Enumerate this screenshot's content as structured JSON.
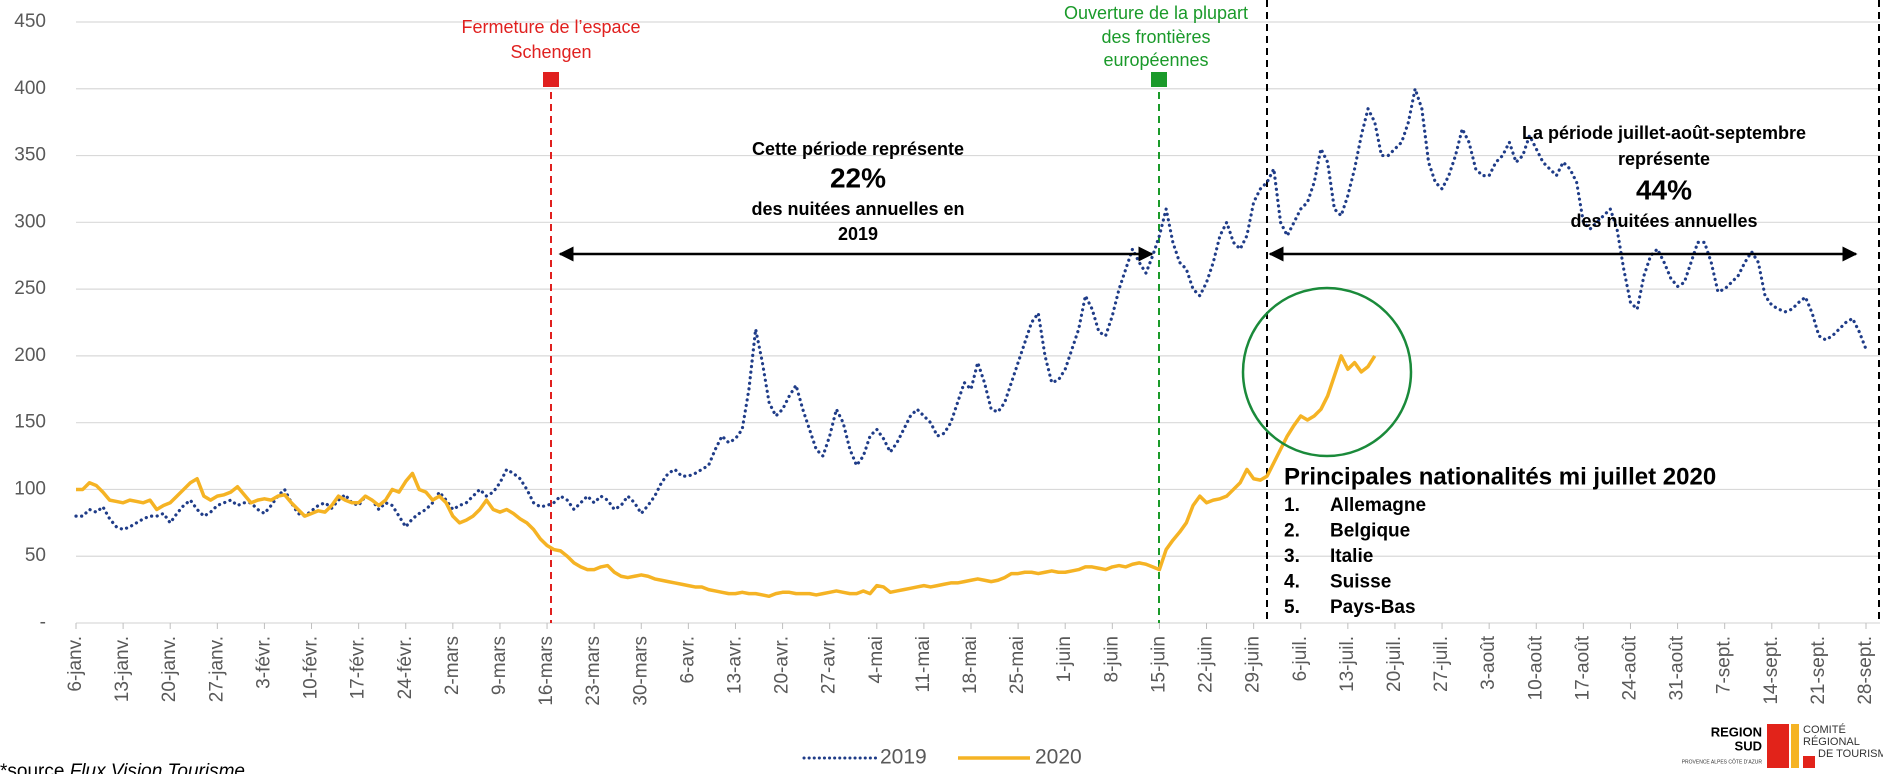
{
  "chart_data": {
    "type": "line",
    "categories": [
      "6-janv.",
      null,
      null,
      null,
      null,
      null,
      null,
      "13-janv.",
      null,
      null,
      null,
      null,
      null,
      null,
      "20-janv.",
      null,
      null,
      null,
      null,
      null,
      null,
      "27-janv.",
      null,
      null,
      null,
      null,
      null,
      null,
      "3-févr.",
      null,
      null,
      null,
      null,
      null,
      null,
      "10-févr.",
      null,
      null,
      null,
      null,
      null,
      null,
      "17-févr.",
      null,
      null,
      null,
      null,
      null,
      null,
      "24-févr.",
      null,
      null,
      null,
      null,
      null,
      null,
      "2-mars",
      null,
      null,
      null,
      null,
      null,
      null,
      "9-mars",
      null,
      null,
      null,
      null,
      null,
      null,
      "16-mars",
      null,
      null,
      null,
      null,
      null,
      null,
      "23-mars",
      null,
      null,
      null,
      null,
      null,
      null,
      "30-mars",
      null,
      null,
      null,
      null,
      null,
      null,
      "6-avr.",
      null,
      null,
      null,
      null,
      null,
      null,
      "13-avr.",
      null,
      null,
      null,
      null,
      null,
      null,
      "20-avr.",
      null,
      null,
      null,
      null,
      null,
      null,
      "27-avr.",
      null,
      null,
      null,
      null,
      null,
      null,
      "4-mai",
      null,
      null,
      null,
      null,
      null,
      null,
      "11-mai",
      null,
      null,
      null,
      null,
      null,
      null,
      "18-mai",
      null,
      null,
      null,
      null,
      null,
      null,
      "25-mai",
      null,
      null,
      null,
      null,
      null,
      null,
      "1-juin",
      null,
      null,
      null,
      null,
      null,
      null,
      "8-juin",
      null,
      null,
      null,
      null,
      null,
      null,
      "15-juin",
      null,
      null,
      null,
      null,
      null,
      null,
      "22-juin",
      null,
      null,
      null,
      null,
      null,
      null,
      "29-juin",
      null,
      null,
      null,
      null,
      null,
      null,
      "6-juil.",
      null,
      null,
      null,
      null,
      null,
      null,
      "13-juil.",
      null,
      null,
      null,
      null,
      null,
      null,
      "20-juil.",
      null,
      null,
      null,
      null,
      null,
      null,
      "27-juil.",
      null,
      null,
      null,
      null,
      null,
      null,
      "3-août",
      null,
      null,
      null,
      null,
      null,
      null,
      "10-août",
      null,
      null,
      null,
      null,
      null,
      null,
      "17-août",
      null,
      null,
      null,
      null,
      null,
      null,
      "24-août",
      null,
      null,
      null,
      null,
      null,
      null,
      "31-août",
      null,
      null,
      null,
      null,
      null,
      null,
      "7-sept.",
      null,
      null,
      null,
      null,
      null,
      null,
      "14-sept.",
      null,
      null,
      null,
      null,
      null,
      null,
      "21-sept.",
      null,
      null,
      null,
      null,
      null,
      null,
      "28-sept."
    ],
    "series": [
      {
        "name": "2019",
        "color": "#1f3c88",
        "style": "dotted",
        "values": [
          80,
          80,
          85,
          83,
          87,
          78,
          72,
          70,
          72,
          75,
          78,
          80,
          80,
          82,
          75,
          82,
          88,
          92,
          85,
          80,
          83,
          88,
          90,
          92,
          88,
          90,
          90,
          85,
          82,
          88,
          95,
          100,
          90,
          82,
          80,
          84,
          88,
          90,
          86,
          92,
          96,
          90,
          88,
          95,
          92,
          85,
          90,
          88,
          80,
          72,
          78,
          82,
          85,
          90,
          98,
          92,
          85,
          88,
          90,
          95,
          100,
          95,
          98,
          105,
          115,
          112,
          108,
          100,
          90,
          87,
          88,
          90,
          95,
          92,
          85,
          90,
          95,
          90,
          95,
          92,
          85,
          88,
          95,
          90,
          82,
          88,
          95,
          105,
          112,
          115,
          110,
          110,
          112,
          115,
          118,
          130,
          140,
          135,
          138,
          145,
          175,
          220,
          195,
          165,
          155,
          160,
          170,
          178,
          160,
          145,
          130,
          125,
          140,
          160,
          150,
          130,
          118,
          125,
          140,
          145,
          138,
          128,
          135,
          145,
          155,
          160,
          155,
          150,
          140,
          142,
          150,
          165,
          180,
          175,
          195,
          180,
          160,
          158,
          165,
          180,
          195,
          210,
          225,
          232,
          200,
          180,
          182,
          190,
          205,
          220,
          245,
          235,
          218,
          215,
          230,
          250,
          265,
          280,
          270,
          262,
          275,
          290,
          310,
          285,
          270,
          265,
          250,
          245,
          255,
          270,
          290,
          300,
          285,
          280,
          290,
          315,
          325,
          330,
          340,
          300,
          290,
          300,
          310,
          315,
          330,
          355,
          345,
          310,
          305,
          320,
          340,
          365,
          385,
          375,
          350,
          350,
          355,
          360,
          375,
          400,
          385,
          345,
          330,
          325,
          335,
          350,
          370,
          360,
          340,
          335,
          335,
          345,
          350,
          360,
          345,
          350,
          365,
          355,
          345,
          340,
          335,
          345,
          340,
          330,
          300,
          295,
          300,
          305,
          310,
          295,
          265,
          240,
          235,
          260,
          275,
          280,
          270,
          258,
          252,
          255,
          270,
          285,
          285,
          270,
          248,
          250,
          255,
          260,
          270,
          278,
          270,
          245,
          238,
          235,
          233,
          235,
          240,
          244,
          232,
          215,
          212,
          215,
          220,
          225,
          228,
          218,
          205
        ]
      },
      {
        "name": "2020",
        "color": "#f5b324",
        "style": "solid",
        "values": [
          100,
          100,
          105,
          103,
          98,
          92,
          91,
          90,
          92,
          91,
          90,
          92,
          85,
          88,
          90,
          95,
          100,
          105,
          108,
          95,
          92,
          95,
          96,
          98,
          102,
          96,
          90,
          92,
          93,
          92,
          95,
          96,
          90,
          85,
          80,
          82,
          84,
          83,
          88,
          95,
          92,
          90,
          90,
          95,
          92,
          88,
          92,
          100,
          98,
          106,
          112,
          100,
          98,
          92,
          95,
          90,
          80,
          75,
          77,
          80,
          85,
          92,
          85,
          83,
          85,
          82,
          78,
          75,
          70,
          63,
          58,
          55,
          54,
          50,
          45,
          42,
          40,
          40,
          42,
          43,
          38,
          35,
          34,
          35,
          36,
          35,
          33,
          32,
          31,
          30,
          29,
          28,
          27,
          27,
          25,
          24,
          23,
          22,
          22,
          23,
          22,
          22,
          21,
          20,
          22,
          23,
          23,
          22,
          22,
          22,
          21,
          22,
          23,
          24,
          23,
          22,
          22,
          24,
          22,
          28,
          27,
          23,
          24,
          25,
          26,
          27,
          28,
          27,
          28,
          29,
          30,
          30,
          31,
          32,
          33,
          32,
          31,
          32,
          34,
          37,
          37,
          38,
          38,
          37,
          38,
          39,
          38,
          38,
          39,
          40,
          42,
          42,
          41,
          40,
          42,
          43,
          42,
          44,
          45,
          44,
          42,
          40,
          55,
          62,
          68,
          75,
          88,
          95,
          90,
          92,
          93,
          95,
          100,
          105,
          115,
          108,
          107,
          110,
          120,
          130,
          140,
          148,
          155,
          152,
          155,
          160,
          170,
          185,
          200,
          190,
          195,
          188,
          192,
          200,
          null,
          null,
          null,
          null,
          null,
          null,
          null,
          null,
          null,
          null,
          null,
          null,
          null,
          null,
          null,
          null,
          null,
          null,
          null,
          null,
          null,
          null,
          null,
          null,
          null,
          null,
          null,
          null,
          null,
          null,
          null,
          null,
          null,
          null,
          null,
          null,
          null,
          null,
          null,
          null,
          null,
          null,
          null,
          null,
          null,
          null,
          null,
          null,
          null,
          null,
          null,
          null,
          null,
          null,
          null,
          null,
          null,
          null,
          null,
          null,
          null,
          null,
          null,
          null,
          null,
          null,
          null,
          null,
          null,
          null,
          null,
          null,
          null
        ]
      }
    ],
    "ylim": [
      0,
      450
    ],
    "yticks": [
      {
        "value": 0,
        "label": "-"
      },
      50,
      100,
      150,
      200,
      250,
      300,
      350,
      400,
      450
    ],
    "grid": true,
    "annotations": {
      "schengen": [
        "Fermeture de l’espace",
        "Schengen"
      ],
      "borders": [
        "Ouverture de la plupart",
        "des frontières",
        "européennes"
      ],
      "period1": [
        "Cette période représente",
        "22%",
        "des nuitées annuelles en",
        "2019"
      ],
      "period2": [
        "La période juillet-août-septembre",
        "représente",
        "44%",
        "des nuitées annuelles"
      ]
    },
    "nationalities": {
      "title": "Principales nationalités mi juillet 2020",
      "items": [
        {
          "rank": "1.",
          "name": "Allemagne"
        },
        {
          "rank": "2.",
          "name": "Belgique"
        },
        {
          "rank": "3.",
          "name": "Italie"
        },
        {
          "rank": "4.",
          "name": "Suisse"
        },
        {
          "rank": "5.",
          "name": "Pays-Bas"
        }
      ]
    },
    "source": "*source",
    "source_name": "Flux Vision Tourisme",
    "logo": {
      "region": "REGION",
      "sud": "SUD",
      "sub": "PROVENCE ALPES CÔTE D’AZUR",
      "committee": [
        "COMITÉ",
        "RÉGIONAL",
        "DE TOURISME"
      ]
    }
  }
}
